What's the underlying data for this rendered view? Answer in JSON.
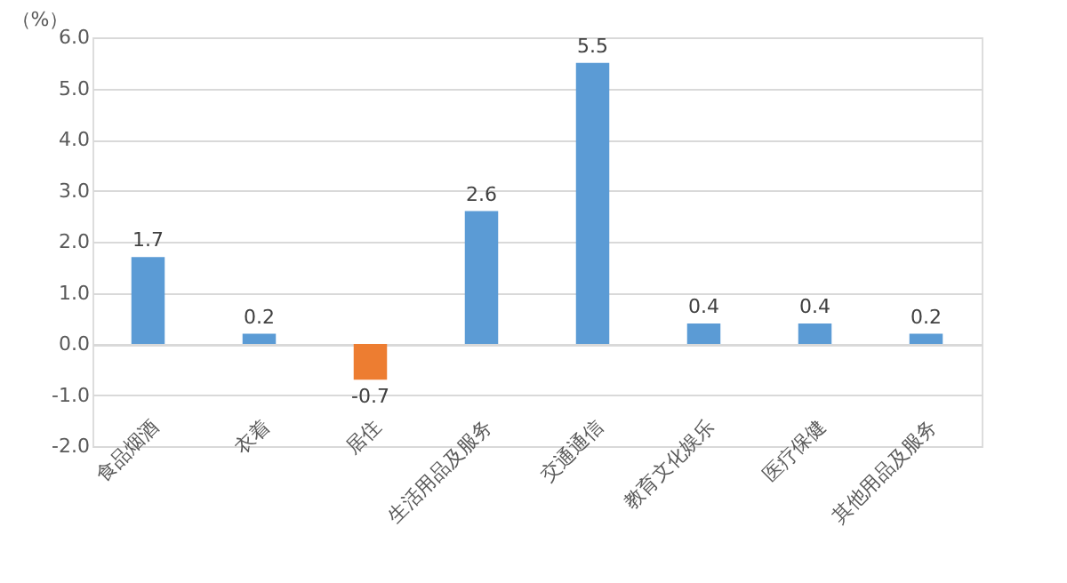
{
  "chart_data": {
    "type": "bar",
    "ylabel": "（%）",
    "categories": [
      "食品烟酒",
      "衣着",
      "居住",
      "生活用品及服务",
      "交通通信",
      "教育文化娱乐",
      "医疗保健",
      "其他用品及服务"
    ],
    "values": [
      1.7,
      0.2,
      -0.7,
      2.6,
      5.5,
      0.4,
      0.4,
      0.2
    ],
    "colors": [
      "#5b9bd5",
      "#5b9bd5",
      "#ed7d31",
      "#5b9bd5",
      "#5b9bd5",
      "#5b9bd5",
      "#5b9bd5",
      "#5b9bd5"
    ],
    "ylim": [
      -2,
      6
    ],
    "yticks": [
      {
        "value": -2,
        "label": "-2.0"
      },
      {
        "value": -1,
        "label": "-1.0"
      },
      {
        "value": 0,
        "label": "0.0"
      },
      {
        "value": 1,
        "label": "1.0"
      },
      {
        "value": 2,
        "label": "2.0"
      },
      {
        "value": 3,
        "label": "3.0"
      },
      {
        "value": 4,
        "label": "4.0"
      },
      {
        "value": 5,
        "label": "5.0"
      },
      {
        "value": 6,
        "label": "6.0"
      }
    ],
    "data_labels": true,
    "grid": "y"
  }
}
